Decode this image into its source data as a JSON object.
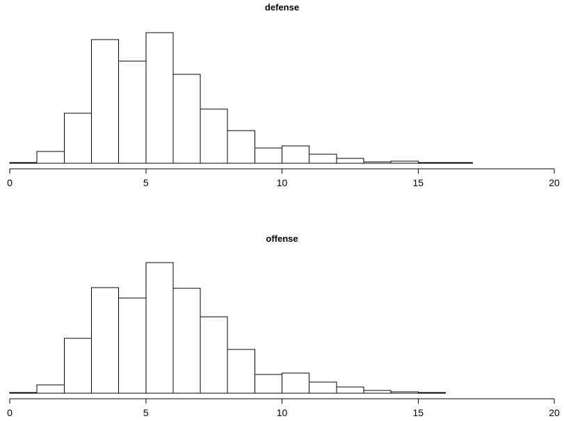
{
  "chart_data": [
    {
      "type": "bar",
      "title": "defense",
      "xlabel": "",
      "ylabel": "",
      "bin_edges": [
        0,
        1,
        2,
        3,
        4,
        5,
        6,
        7,
        8,
        9,
        10,
        11,
        12,
        13,
        14,
        15,
        16,
        17
      ],
      "values": [
        1,
        17,
        72,
        178,
        147,
        188,
        128,
        78,
        47,
        22,
        25,
        13,
        7,
        2,
        3,
        1,
        1
      ],
      "xlim": [
        0,
        20
      ],
      "x_ticks": [
        "0",
        "5",
        "10",
        "15",
        "20"
      ],
      "ylim": [
        0,
        188
      ],
      "grid": false,
      "y_axis_shown": false
    },
    {
      "type": "bar",
      "title": "offense",
      "xlabel": "",
      "ylabel": "",
      "bin_edges": [
        0,
        1,
        2,
        3,
        4,
        5,
        6,
        7,
        8,
        9,
        10,
        11,
        12,
        13,
        14,
        15,
        16
      ],
      "values": [
        1,
        12,
        79,
        152,
        137,
        188,
        151,
        110,
        63,
        27,
        29,
        16,
        9,
        4,
        2,
        1
      ],
      "xlim": [
        0,
        20
      ],
      "x_ticks": [
        "0",
        "5",
        "10",
        "15",
        "20"
      ],
      "ylim": [
        0,
        188
      ],
      "grid": false,
      "y_axis_shown": false
    }
  ]
}
